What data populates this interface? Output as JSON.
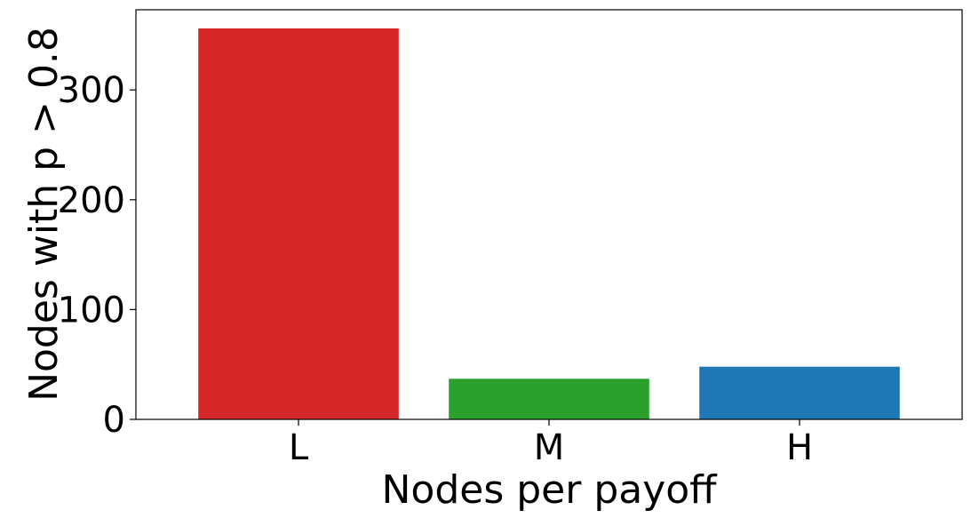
{
  "chart_data": {
    "type": "bar",
    "categories": [
      "L",
      "M",
      "H"
    ],
    "values": [
      356,
      37,
      48
    ],
    "colors": [
      "#d62728",
      "#2ca02c",
      "#1f77b4"
    ],
    "title": "",
    "xlabel": "Nodes per payoff",
    "ylabel": "Nodes with p > 0.8",
    "ylim": [
      0,
      373
    ],
    "yticks": [
      0,
      100,
      200,
      300
    ],
    "ytick_labels": [
      "0",
      "100",
      "200",
      "300"
    ],
    "grid": false,
    "legend": "none"
  }
}
